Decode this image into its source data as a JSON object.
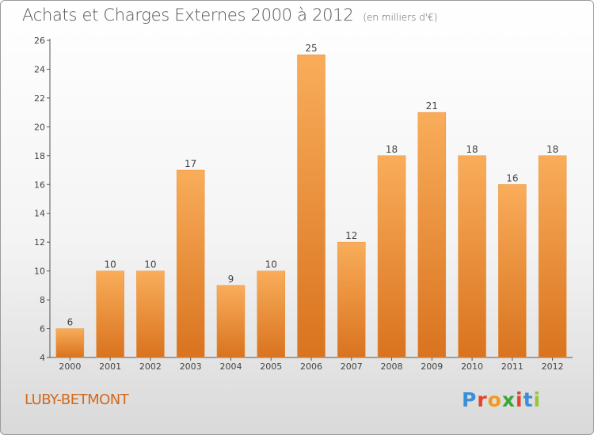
{
  "header": {
    "title": "Achats et Charges Externes 2000 à 2012",
    "unit": "(en milliers d'€)"
  },
  "footer": {
    "commune": "LUBY-BETMONT",
    "logo_text": [
      "P",
      "r",
      "o",
      "x",
      "i",
      "t",
      "i"
    ],
    "logo_colors": [
      "#3a8fd6",
      "#e0442b",
      "#f29a1c",
      "#3aa63a",
      "#e0442b",
      "#3a8fd6",
      "#9ac43a"
    ]
  },
  "colors": {
    "bar_light": "#f9ad5a",
    "bar_dark": "#d9731f",
    "accent": "#d2691e"
  },
  "chart_data": {
    "type": "bar",
    "title": "Achats et Charges Externes 2000 à 2012",
    "subtitle": "(en milliers d'€)",
    "categories": [
      "2000",
      "2001",
      "2002",
      "2003",
      "2004",
      "2005",
      "2006",
      "2007",
      "2008",
      "2009",
      "2010",
      "2011",
      "2012"
    ],
    "values": [
      6,
      10,
      10,
      17,
      9,
      10,
      25,
      12,
      18,
      21,
      18,
      16,
      18
    ],
    "ylim": [
      4,
      26
    ],
    "yticks": [
      4,
      6,
      8,
      10,
      12,
      14,
      16,
      18,
      20,
      22,
      24,
      26
    ],
    "xlabel": "",
    "ylabel": "",
    "grid": false
  }
}
